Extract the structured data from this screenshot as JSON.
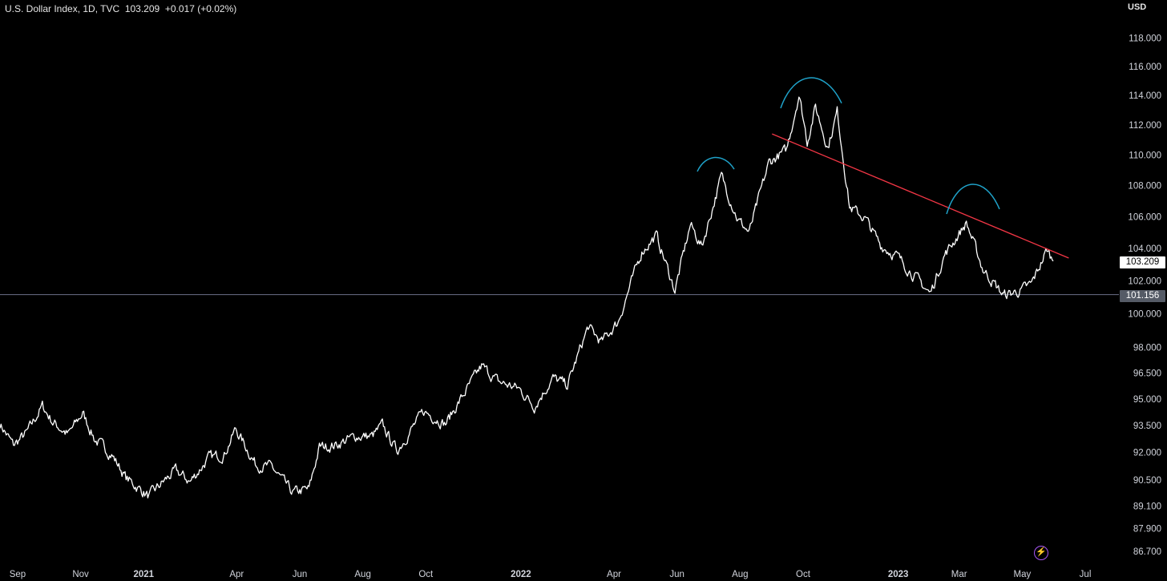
{
  "header": {
    "title": "U.S. Dollar Index, 1D, TVC  103.209  +0.017 (+0.02%)",
    "currency": "USD"
  },
  "last_price_label": "103.209",
  "reference_price_label": "101.156",
  "icon": "lightning-icon",
  "colors": {
    "background": "#000000",
    "price_line": "#ffffff",
    "trendline": "#f23645",
    "arc": "#1fa2c9",
    "horizontal_line": "#6b7089",
    "axis_text": "#d1d4dc",
    "accent": "#a855f7"
  },
  "chart_data": {
    "type": "line",
    "title": "U.S. Dollar Index, 1D, TVC",
    "y_scale": "log",
    "ylim": [
      86.7,
      119.0
    ],
    "y_ticks": [
      "118.000",
      "116.000",
      "114.000",
      "112.000",
      "110.000",
      "108.000",
      "106.000",
      "104.000",
      "102.000",
      "100.000",
      "98.000",
      "96.500",
      "95.000",
      "93.500",
      "92.000",
      "90.500",
      "89.100",
      "87.900",
      "86.700"
    ],
    "x_ticks": [
      "Sep",
      "Nov",
      "2021",
      "Apr",
      "Jun",
      "Aug",
      "Oct",
      "2022",
      "Apr",
      "Jun",
      "Aug",
      "Oct",
      "2023",
      "Mar",
      "May",
      "Jul"
    ],
    "x_tick_dates": [
      "2020-09-01",
      "2020-11-01",
      "2021-01-01",
      "2021-04-01",
      "2021-06-01",
      "2021-08-01",
      "2021-10-01",
      "2022-01-01",
      "2022-04-01",
      "2022-06-01",
      "2022-08-01",
      "2022-10-01",
      "2023-01-01",
      "2023-03-01",
      "2023-05-01",
      "2023-07-01"
    ],
    "xlim": [
      "2020-08-15",
      "2023-08-01"
    ],
    "grid": false,
    "series": [
      {
        "points": [
          [
            "2020-08-15",
            93.6
          ],
          [
            "2020-08-28",
            92.4
          ],
          [
            "2020-09-10",
            93.1
          ],
          [
            "2020-09-25",
            94.6
          ],
          [
            "2020-10-05",
            93.7
          ],
          [
            "2020-10-20",
            93.0
          ],
          [
            "2020-11-03",
            94.2
          ],
          [
            "2020-11-15",
            92.7
          ],
          [
            "2020-12-01",
            91.9
          ],
          [
            "2020-12-15",
            90.6
          ],
          [
            "2021-01-06",
            89.6
          ],
          [
            "2021-01-20",
            90.4
          ],
          [
            "2021-02-01",
            91.0
          ],
          [
            "2021-02-15",
            90.4
          ],
          [
            "2021-03-05",
            91.7
          ],
          [
            "2021-03-20",
            91.9
          ],
          [
            "2021-03-31",
            93.3
          ],
          [
            "2021-04-20",
            91.3
          ],
          [
            "2021-05-05",
            91.2
          ],
          [
            "2021-05-25",
            89.8
          ],
          [
            "2021-06-10",
            90.0
          ],
          [
            "2021-06-20",
            92.3
          ],
          [
            "2021-07-05",
            92.4
          ],
          [
            "2021-07-25",
            92.9
          ],
          [
            "2021-08-10",
            92.9
          ],
          [
            "2021-08-20",
            93.5
          ],
          [
            "2021-09-03",
            92.1
          ],
          [
            "2021-09-29",
            94.3
          ],
          [
            "2021-10-20",
            93.6
          ],
          [
            "2021-11-24",
            96.9
          ],
          [
            "2021-12-10",
            96.0
          ],
          [
            "2021-12-30",
            95.6
          ],
          [
            "2022-01-14",
            94.6
          ],
          [
            "2022-02-01",
            96.2
          ],
          [
            "2022-02-15",
            95.8
          ],
          [
            "2022-03-07",
            99.2
          ],
          [
            "2022-03-20",
            98.3
          ],
          [
            "2022-04-05",
            99.5
          ],
          [
            "2022-04-28",
            103.8
          ],
          [
            "2022-05-12",
            104.8
          ],
          [
            "2022-05-30",
            101.4
          ],
          [
            "2022-06-14",
            105.5
          ],
          [
            "2022-06-25",
            104.1
          ],
          [
            "2022-07-14",
            108.6
          ],
          [
            "2022-07-30",
            105.8
          ],
          [
            "2022-08-10",
            105.0
          ],
          [
            "2022-08-29",
            109.5
          ],
          [
            "2022-09-15",
            110.3
          ],
          [
            "2022-09-27",
            114.1
          ],
          [
            "2022-10-05",
            110.9
          ],
          [
            "2022-10-13",
            113.2
          ],
          [
            "2022-10-25",
            110.5
          ],
          [
            "2022-11-03",
            112.9
          ],
          [
            "2022-11-15",
            106.6
          ],
          [
            "2022-11-30",
            105.9
          ],
          [
            "2022-12-15",
            104.2
          ],
          [
            "2022-12-31",
            103.5
          ],
          [
            "2023-01-18",
            102.2
          ],
          [
            "2023-02-01",
            101.2
          ],
          [
            "2023-02-15",
            103.6
          ],
          [
            "2023-03-08",
            105.6
          ],
          [
            "2023-03-24",
            102.7
          ],
          [
            "2023-04-13",
            101.1
          ],
          [
            "2023-04-30",
            101.4
          ],
          [
            "2023-05-10",
            101.8
          ],
          [
            "2023-05-25",
            103.9
          ],
          [
            "2023-05-31",
            103.209
          ]
        ]
      }
    ],
    "reference_level": 101.156,
    "annotations": [
      {
        "type": "trendline",
        "color": "red",
        "from": [
          "2022-09-01",
          111.4
        ],
        "to": [
          "2023-06-15",
          103.4
        ]
      },
      {
        "type": "arc",
        "color": "blue",
        "over": "2022-07-15"
      },
      {
        "type": "arc",
        "color": "blue",
        "over": "2022-10-05"
      },
      {
        "type": "arc",
        "color": "blue",
        "over": "2023-03-25"
      }
    ]
  }
}
